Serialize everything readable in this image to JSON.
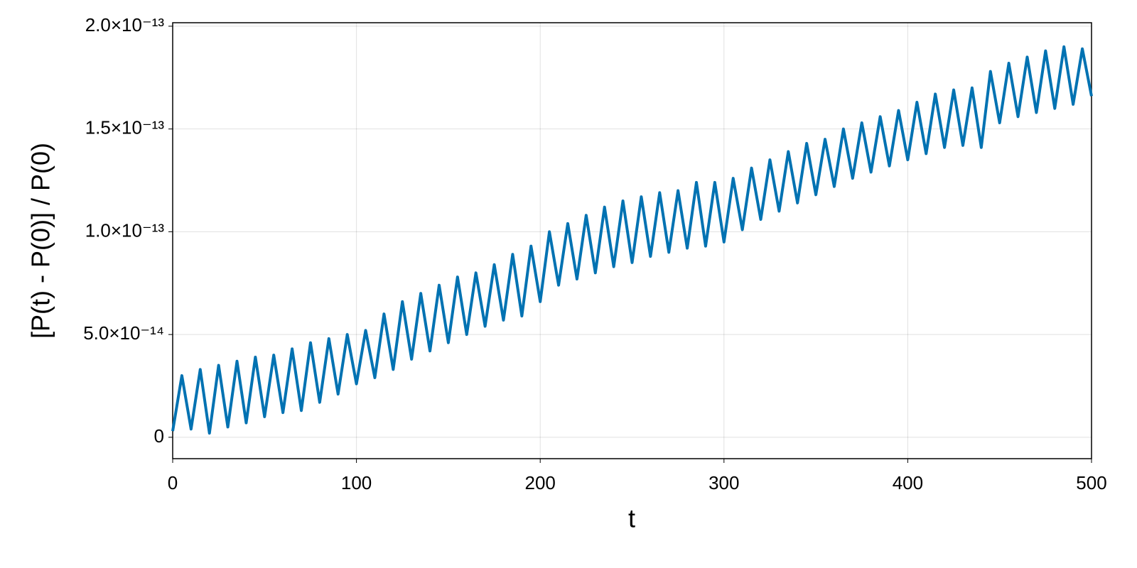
{
  "chart_data": {
    "type": "line",
    "xlabel": "t",
    "ylabel": "[P(t) - P(0)] / P(0)",
    "color": "#0072b2",
    "grid": true,
    "xlim": [
      0,
      500
    ],
    "ylim": [
      -1.04e-14,
      2.017e-13
    ],
    "xticks": [
      0,
      100,
      200,
      300,
      400,
      500
    ],
    "yticks": [
      0,
      {
        "value": 5e-14,
        "label": "5.0×10⁻¹⁴"
      },
      {
        "value": 1e-13,
        "label": "1.0×10⁻¹³"
      },
      {
        "value": 1.5e-13,
        "label": "1.5×10⁻¹³"
      },
      {
        "value": 2e-13,
        "label": "2.0×10⁻¹³"
      }
    ],
    "x": [
      0,
      5,
      10,
      15,
      20,
      25,
      30,
      35,
      40,
      45,
      50,
      55,
      60,
      65,
      70,
      75,
      80,
      85,
      90,
      95,
      100,
      105,
      110,
      115,
      120,
      125,
      130,
      135,
      140,
      145,
      150,
      155,
      160,
      165,
      170,
      175,
      180,
      185,
      190,
      195,
      200,
      205,
      210,
      215,
      220,
      225,
      230,
      235,
      240,
      245,
      250,
      255,
      260,
      265,
      270,
      275,
      280,
      285,
      290,
      295,
      300,
      305,
      310,
      315,
      320,
      325,
      330,
      335,
      340,
      345,
      350,
      355,
      360,
      365,
      370,
      375,
      380,
      385,
      390,
      395,
      400,
      405,
      410,
      415,
      420,
      425,
      430,
      435,
      440,
      445,
      450,
      455,
      460,
      465,
      470,
      475,
      480,
      485,
      490,
      495,
      500
    ],
    "values": [
      3e-15,
      3e-14,
      4e-15,
      3.3e-14,
      2e-15,
      3.5e-14,
      5e-15,
      3.7e-14,
      7e-15,
      3.9e-14,
      1e-14,
      4e-14,
      1.2e-14,
      4.3e-14,
      1.3e-14,
      4.6e-14,
      1.7e-14,
      4.8e-14,
      2.1e-14,
      5e-14,
      2.6e-14,
      5.2e-14,
      2.9e-14,
      6e-14,
      3.3e-14,
      6.6e-14,
      3.8e-14,
      7e-14,
      4.2e-14,
      7.4e-14,
      4.6e-14,
      7.8e-14,
      5e-14,
      8e-14,
      5.4e-14,
      8.4e-14,
      5.7e-14,
      8.9e-14,
      5.9e-14,
      9.3e-14,
      6.6e-14,
      1e-13,
      7.4e-14,
      1.04e-13,
      7.7e-14,
      1.08e-13,
      8e-14,
      1.12e-13,
      8.3e-14,
      1.15e-13,
      8.5e-14,
      1.17e-13,
      8.8e-14,
      1.19e-13,
      9e-14,
      1.2e-13,
      9.2e-14,
      1.24e-13,
      9.3e-14,
      1.24e-13,
      9.5e-14,
      1.26e-13,
      1.01e-13,
      1.31e-13,
      1.06e-13,
      1.35e-13,
      1.1e-13,
      1.39e-13,
      1.14e-13,
      1.43e-13,
      1.18e-13,
      1.45e-13,
      1.22e-13,
      1.5e-13,
      1.26e-13,
      1.53e-13,
      1.29e-13,
      1.56e-13,
      1.32e-13,
      1.59e-13,
      1.35e-13,
      1.63e-13,
      1.38e-13,
      1.67e-13,
      1.41e-13,
      1.69e-13,
      1.42e-13,
      1.7e-13,
      1.41e-13,
      1.78e-13,
      1.53e-13,
      1.82e-13,
      1.56e-13,
      1.85e-13,
      1.58e-13,
      1.88e-13,
      1.6e-13,
      1.9e-13,
      1.62e-13,
      1.89e-13,
      1.66e-13
    ]
  }
}
